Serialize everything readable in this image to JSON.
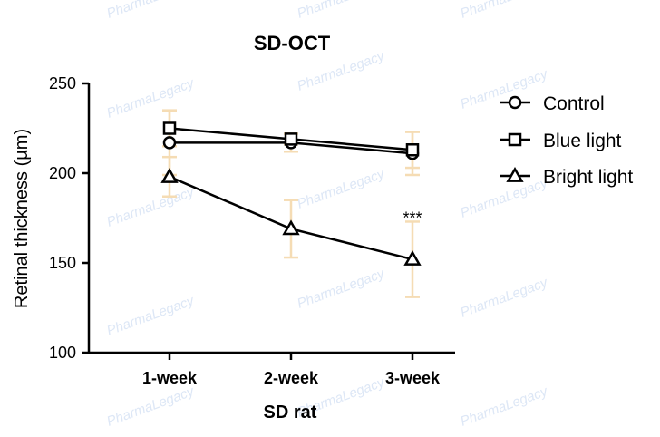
{
  "chart_data": {
    "type": "line",
    "title": "SD-OCT",
    "xlabel": "SD rat",
    "ylabel": "Retinal thickness (µm)",
    "categories": [
      "1-week",
      "2-week",
      "3-week"
    ],
    "ylim": [
      100,
      250
    ],
    "yticks": [
      100,
      150,
      200,
      250
    ],
    "grid": false,
    "legend_position": "right",
    "series": [
      {
        "name": "Control",
        "marker": "circle",
        "values": [
          217,
          217,
          211
        ],
        "error": [
          18,
          5,
          12
        ]
      },
      {
        "name": "Blue light",
        "marker": "square",
        "values": [
          225,
          219,
          213
        ],
        "error": [
          10,
          3,
          10
        ]
      },
      {
        "name": "Bright light",
        "marker": "triangle",
        "values": [
          198,
          169,
          152
        ],
        "error": [
          11,
          16,
          21
        ]
      }
    ],
    "annotations": [
      {
        "text": "***",
        "category": "3-week",
        "y": 172
      }
    ],
    "colors": {
      "line": "#000000",
      "error_bar": "#f5dcb4"
    },
    "watermark": "PharmaLegacy"
  }
}
